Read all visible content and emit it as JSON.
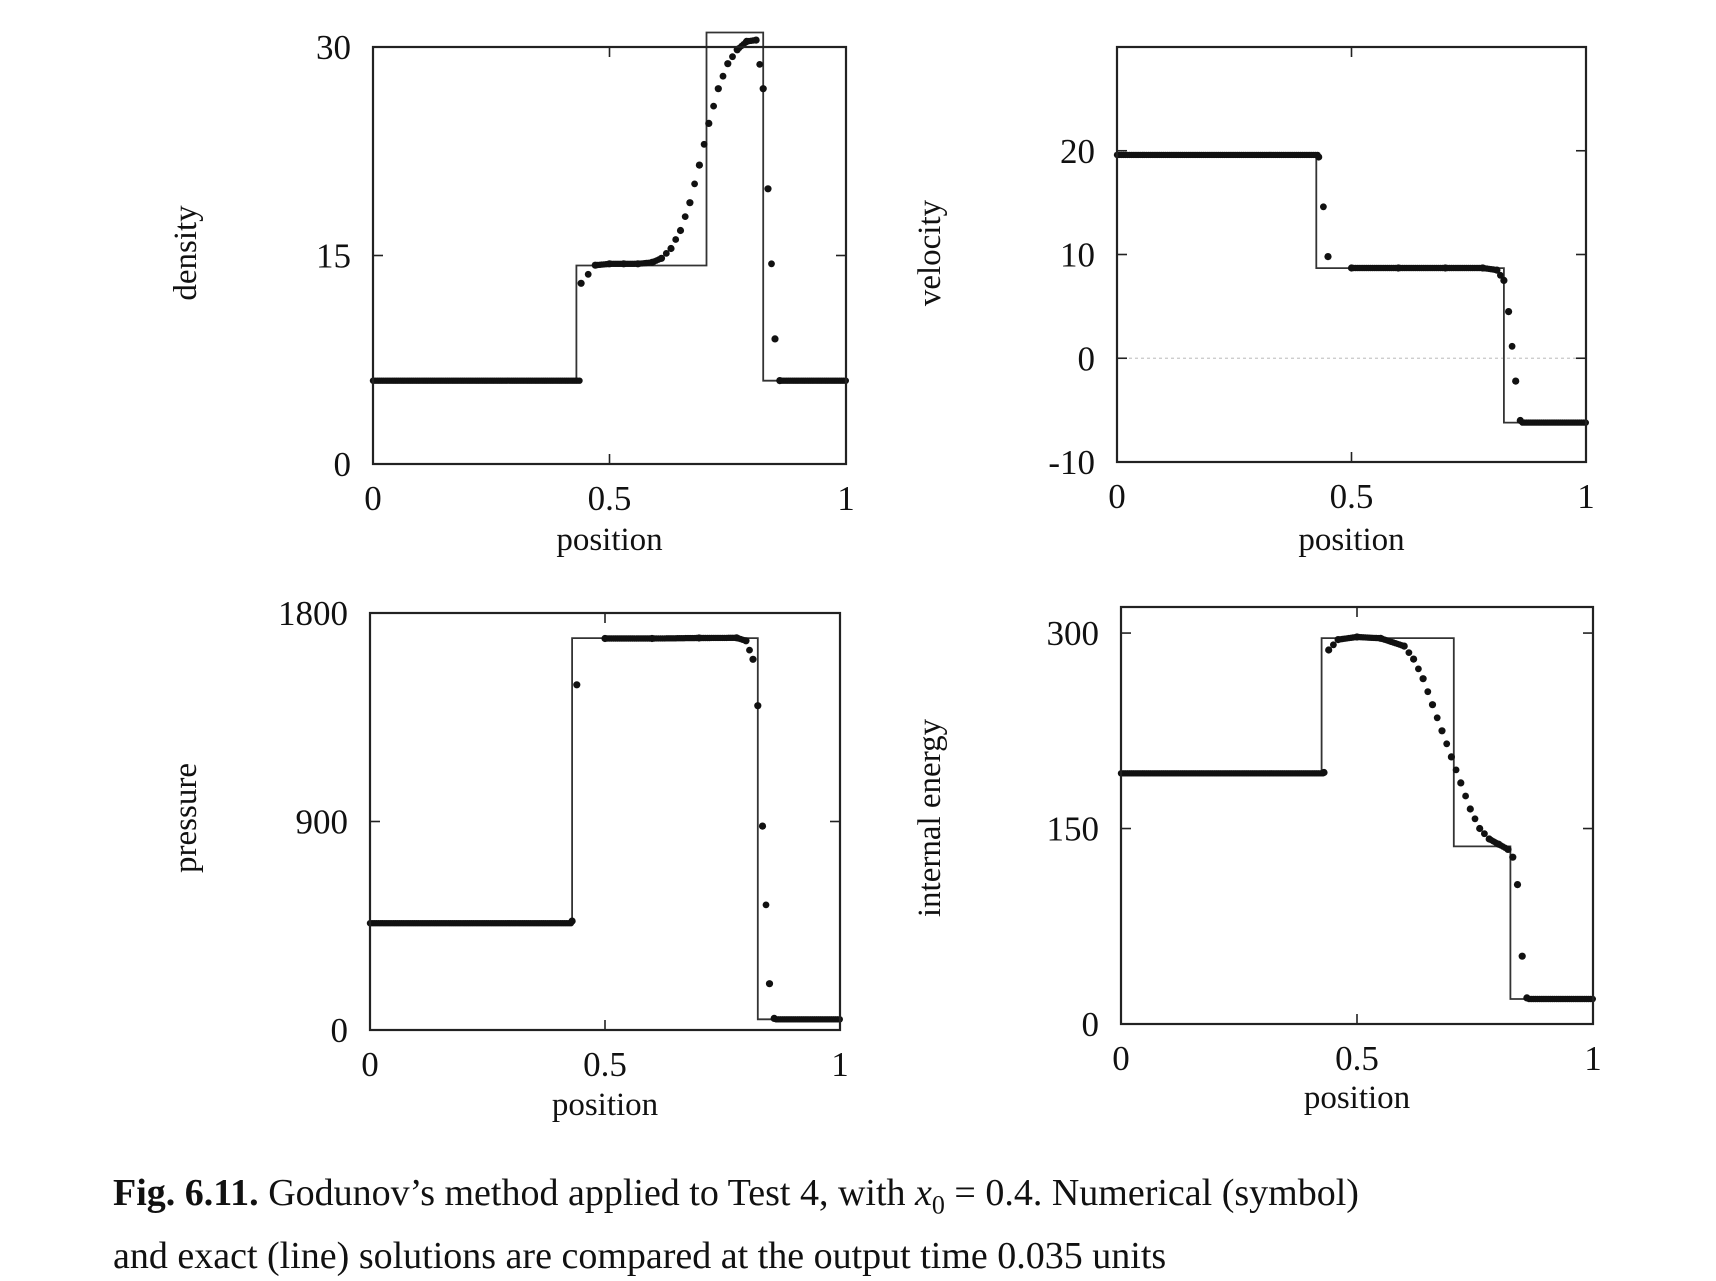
{
  "chart_data": [
    {
      "type": "scatter",
      "title": "",
      "xlabel": "position",
      "ylabel": "density",
      "xlim": [
        0,
        1
      ],
      "ylim": [
        0,
        30
      ],
      "xticks": [
        0,
        0.5,
        1
      ],
      "xtick_labels": [
        "0",
        "0.5",
        "1"
      ],
      "yticks": [
        0,
        15,
        30
      ],
      "ytick_labels": [
        "0",
        "15",
        "30"
      ],
      "grid": false,
      "exact": {
        "name": "exact (line)",
        "x": [
          0,
          0.43,
          0.43,
          0.705,
          0.705,
          0.825,
          0.825,
          1
        ],
        "y": [
          5.99,
          5.99,
          14.28,
          14.28,
          31.04,
          31.04,
          5.99,
          5.99
        ]
      },
      "numerical": {
        "name": "numerical (symbol)",
        "x": [
          0.44,
          0.47,
          0.5,
          0.53,
          0.56,
          0.59,
          0.61,
          0.63,
          0.65,
          0.67,
          0.69,
          0.71,
          0.73,
          0.75,
          0.77,
          0.79,
          0.81,
          0.825,
          0.835,
          0.85,
          0.86
        ],
        "y": [
          13.0,
          14.3,
          14.4,
          14.4,
          14.4,
          14.5,
          14.8,
          15.5,
          16.8,
          18.8,
          21.5,
          24.5,
          27.0,
          28.8,
          29.8,
          30.4,
          30.5,
          27.0,
          19.8,
          9.0,
          6.0
        ]
      }
    },
    {
      "type": "scatter",
      "title": "",
      "xlabel": "position",
      "ylabel": "velocity",
      "xlim": [
        0,
        1
      ],
      "ylim": [
        -10,
        30
      ],
      "xticks": [
        0,
        0.5,
        1
      ],
      "xtick_labels": [
        "0",
        "0.5",
        "1"
      ],
      "yticks": [
        -10,
        0,
        10,
        20
      ],
      "ytick_labels": [
        "-10",
        "0",
        "10",
        "20"
      ],
      "grid": false,
      "exact": {
        "name": "exact (line)",
        "x": [
          0,
          0.425,
          0.425,
          0.825,
          0.825,
          1
        ],
        "y": [
          19.6,
          19.6,
          8.69,
          8.69,
          -6.2,
          -6.2
        ]
      },
      "numerical": {
        "name": "numerical (symbol)",
        "x": [
          0.43,
          0.45,
          0.5,
          0.6,
          0.7,
          0.78,
          0.81,
          0.825,
          0.835,
          0.85,
          0.86
        ],
        "y": [
          19.4,
          9.8,
          8.7,
          8.7,
          8.7,
          8.7,
          8.5,
          7.5,
          4.5,
          -2.2,
          -6.0
        ]
      }
    },
    {
      "type": "scatter",
      "title": "",
      "xlabel": "position",
      "ylabel": "pressure",
      "xlim": [
        0,
        1
      ],
      "ylim": [
        0,
        1800
      ],
      "xticks": [
        0,
        0.5,
        1
      ],
      "xtick_labels": [
        "0",
        "0.5",
        "1"
      ],
      "yticks": [
        0,
        900,
        1800
      ],
      "ytick_labels": [
        "0",
        "900",
        "1800"
      ],
      "grid": false,
      "exact": {
        "name": "exact (line)",
        "x": [
          0,
          0.43,
          0.43,
          0.825,
          0.825,
          1
        ],
        "y": [
          460.9,
          460.9,
          1691.6,
          1691.6,
          46.1,
          46.1
        ]
      },
      "numerical": {
        "name": "numerical (symbol)",
        "x": [
          0.43,
          0.44,
          0.5,
          0.6,
          0.7,
          0.78,
          0.8,
          0.815,
          0.825,
          0.835,
          0.85,
          0.86
        ],
        "y": [
          470,
          1490,
          1690,
          1690,
          1692,
          1693,
          1680,
          1600,
          1400,
          880,
          200,
          50
        ]
      }
    },
    {
      "type": "scatter",
      "title": "",
      "xlabel": "position",
      "ylabel": "internal energy",
      "xlim": [
        0,
        1
      ],
      "ylim": [
        0,
        320
      ],
      "xticks": [
        0,
        0.5,
        1
      ],
      "xtick_labels": [
        "0",
        "0.5",
        "1"
      ],
      "yticks": [
        0,
        150,
        300
      ],
      "ytick_labels": [
        "0",
        "150",
        "300"
      ],
      "grid": false,
      "exact": {
        "name": "exact (line)",
        "x": [
          0,
          0.425,
          0.425,
          0.705,
          0.705,
          0.825,
          0.825,
          1
        ],
        "y": [
          192.4,
          192.4,
          296.1,
          296.1,
          136.3,
          136.3,
          19.2,
          19.2
        ]
      },
      "numerical": {
        "name": "numerical (symbol)",
        "x": [
          0.43,
          0.44,
          0.46,
          0.5,
          0.55,
          0.6,
          0.62,
          0.64,
          0.66,
          0.68,
          0.7,
          0.72,
          0.74,
          0.76,
          0.78,
          0.8,
          0.82,
          0.83,
          0.84,
          0.85,
          0.86
        ],
        "y": [
          193,
          287,
          295,
          297,
          296,
          290,
          280,
          265,
          245,
          225,
          205,
          185,
          165,
          150,
          142,
          138,
          134,
          128,
          107,
          52,
          20
        ]
      }
    }
  ],
  "caption": {
    "label": "Fig. 6.11.",
    "text_1": " Godunov’s method applied to Test 4, with ",
    "math_var": "x",
    "math_sub": "0",
    "text_2": " = 0.4. Numerical (symbol)",
    "text_3": "and exact (line) solutions are compared at the output time 0.035 units"
  }
}
